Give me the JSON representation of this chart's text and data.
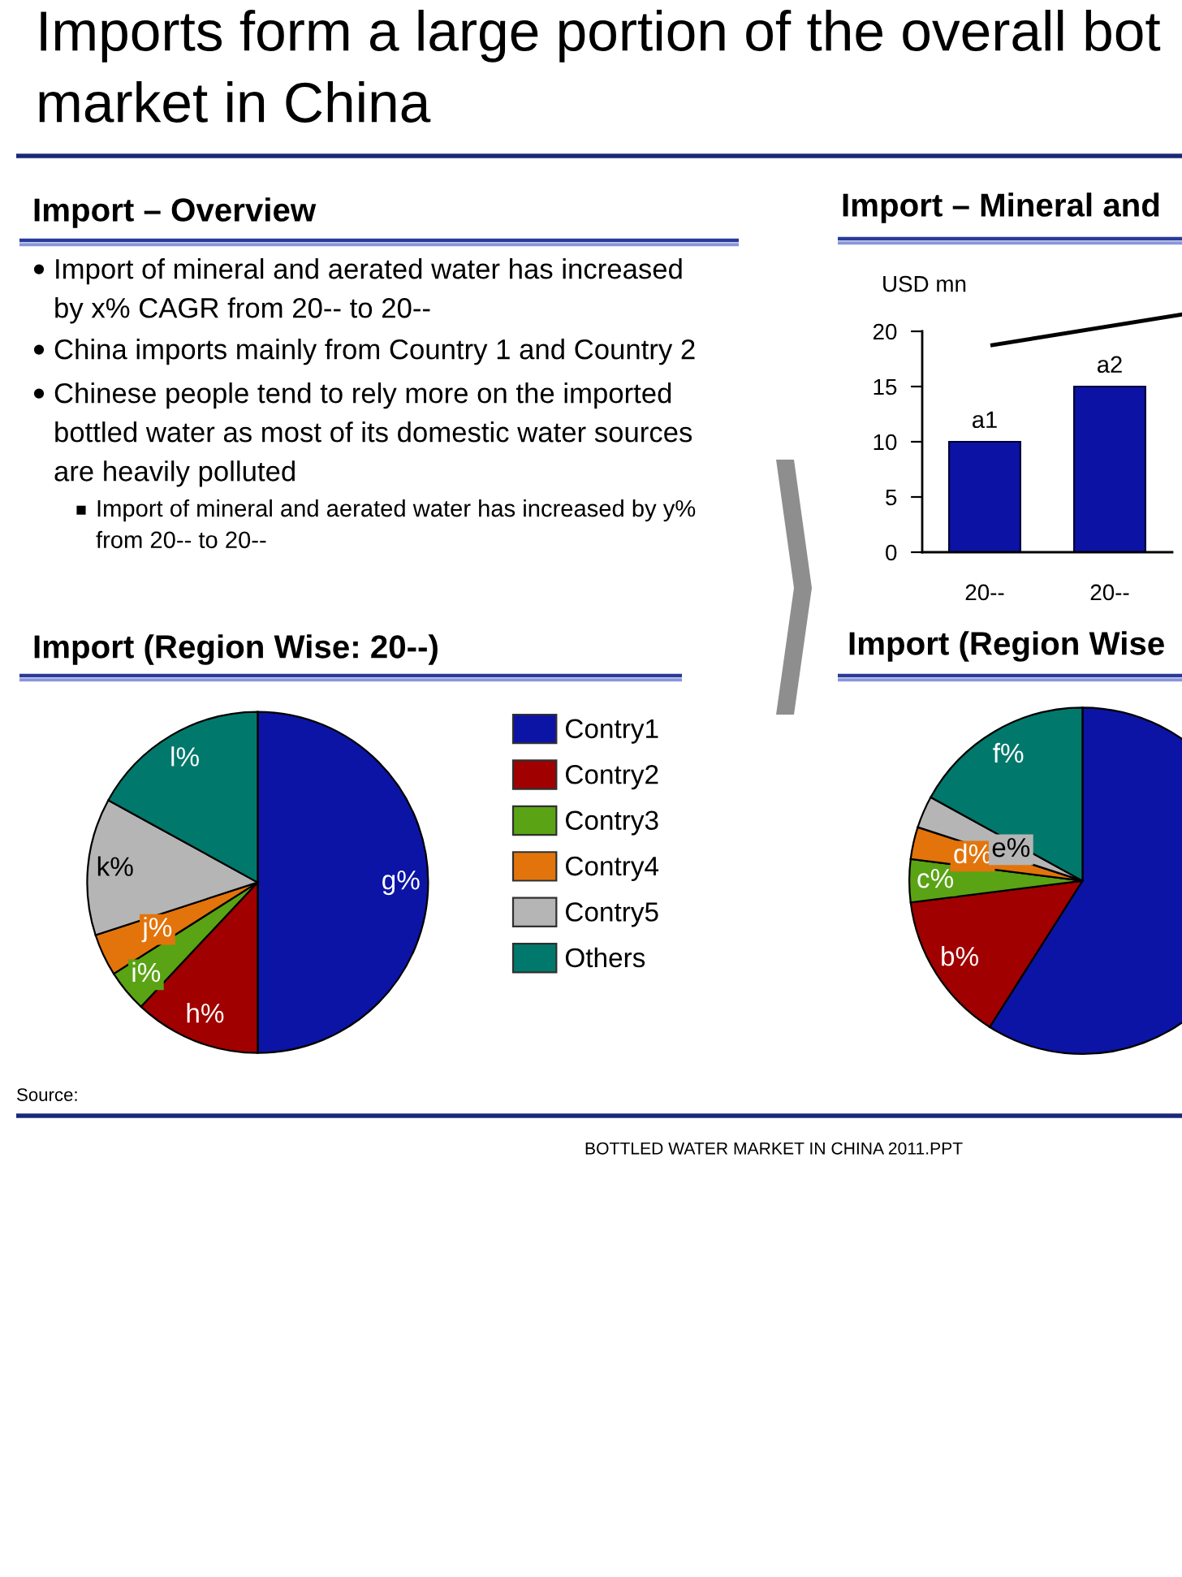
{
  "chart_data": [
    {
      "type": "other",
      "title": "Imports form a large portion of the overall bot\nmarket in China"
    },
    {
      "type": "other",
      "title": "Import – Overview",
      "annotations": [
        "Import of mineral and aerated water has increased\nby x% CAGR from 20-- to 20--",
        "China imports mainly from Country 1 and Country 2",
        "Chinese people tend to rely more on the imported\nbottled water as most of its domestic water sources\nare heavily polluted",
        "Import of mineral and aerated water has increased by y%\nfrom 20-- to 20--"
      ]
    },
    {
      "type": "bar",
      "title": "Import – Mineral and",
      "ylabel": "USD mn",
      "categories": [
        "20--",
        "20--"
      ],
      "values": [
        10,
        15
      ],
      "value_labels": [
        "a1",
        "a2"
      ],
      "color": "#0c12a4",
      "ylim": [
        0,
        20
      ],
      "yticks": [
        0,
        5,
        10,
        15,
        20
      ]
    },
    {
      "type": "pie",
      "title": "Import (Region Wise: 20--)",
      "categories": [
        "Contry1",
        "Contry2",
        "Contry3",
        "Contry4",
        "Contry5",
        "Others"
      ],
      "values": [
        50,
        12,
        4,
        4,
        13,
        17
      ],
      "value_labels": [
        "g%",
        "h%",
        "i%",
        "j%",
        "k%",
        "l%"
      ],
      "colors": [
        "#0c14a6",
        "#a10000",
        "#5aa314",
        "#e3740b",
        "#b5b5b5",
        "#00796c"
      ],
      "legend": "right"
    },
    {
      "type": "pie",
      "title": "Import (Region Wise",
      "categories": [
        null,
        null,
        null,
        null,
        null,
        null
      ],
      "values": [
        59,
        14,
        4,
        3,
        3,
        17
      ],
      "value_labels": [
        null,
        "b%",
        "c%",
        "d%",
        "e%",
        "f%"
      ],
      "colors": [
        "#0c14a6",
        "#a10000",
        "#5aa314",
        "#e3740b",
        "#b5b5b5",
        "#00796c"
      ]
    },
    {
      "type": "other",
      "annotations": [
        "Source:",
        "BOTTLED WATER MARKET IN CHINA 2011.PPT"
      ]
    }
  ]
}
